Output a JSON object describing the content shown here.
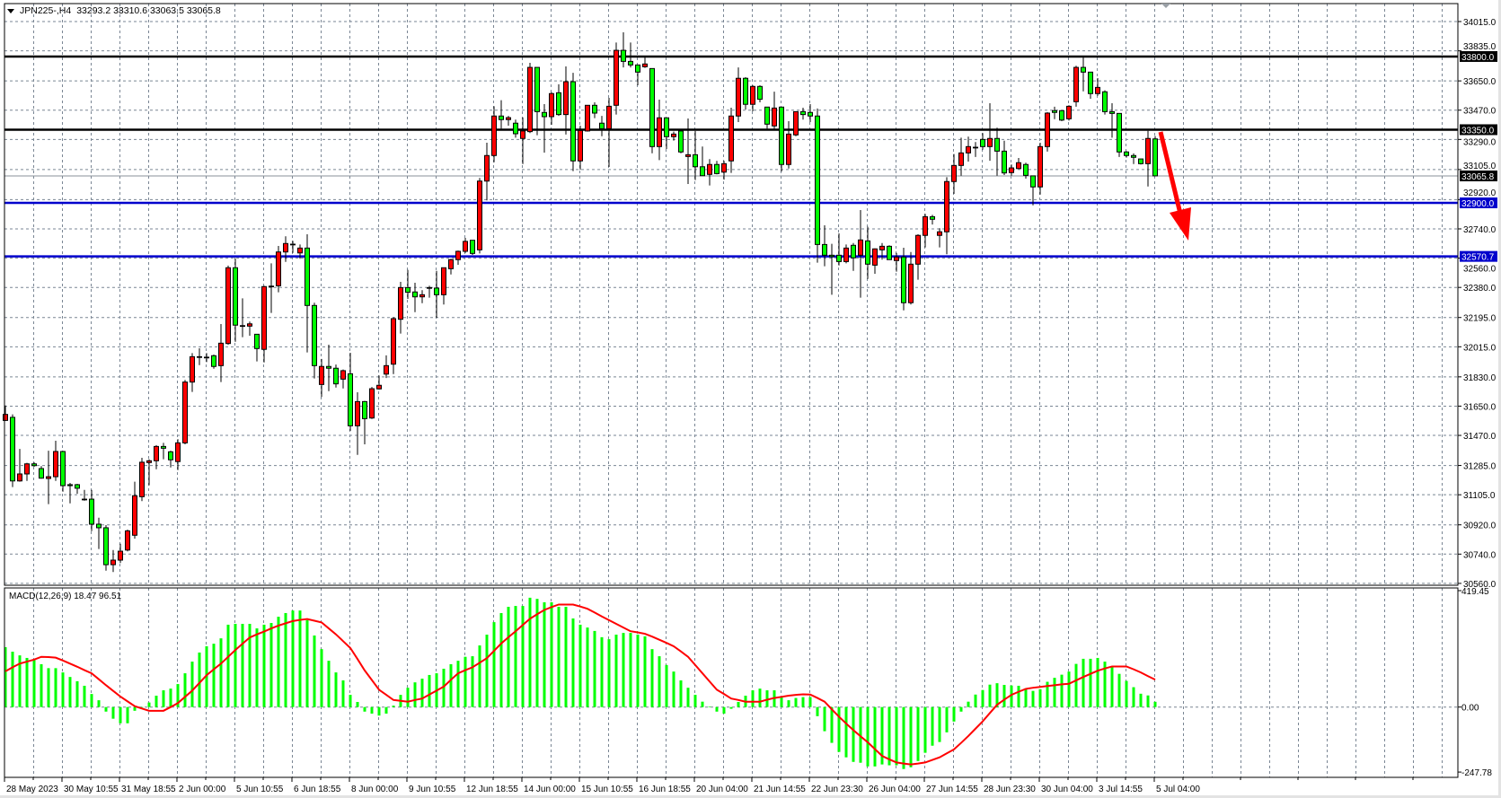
{
  "header": {
    "symbol": "JPN225-,H4",
    "ohlc_text": "33293.2 33310.6 33063.5 33065.8"
  },
  "colors": {
    "bull_candle": "#ff0000",
    "bear_candle": "#00ff00",
    "resistance_line": "#000000",
    "support_line": "#0000cc",
    "current_price_line": "#8a9099",
    "macd_histogram": "#00ff00",
    "macd_signal": "#ff0000",
    "arrow": "#ff0000",
    "grid": "#7a8694"
  },
  "chart_data": {
    "type": "candlestick",
    "timeframe": "H4",
    "price_axis": {
      "range": [
        30560.0,
        34015.0
      ],
      "ticks": [
        "34015.0",
        "33835.0",
        "33650.0",
        "33470.0",
        "33290.0",
        "33105.0",
        "32920.0",
        "32740.0",
        "32560.0",
        "32380.0",
        "32195.0",
        "32015.0",
        "31830.0",
        "31650.0",
        "31470.0",
        "31285.0",
        "31105.0",
        "30920.0",
        "30740.0",
        "30560.0"
      ]
    },
    "time_axis_labels": [
      "28 May 2023",
      "30 May 10:55",
      "31 May 18:55",
      "2 Jun 00:00",
      "5 Jun 10:55",
      "6 Jun 18:55",
      "8 Jun 00:00",
      "9 Jun 10:55",
      "12 Jun 18:55",
      "14 Jun 00:00",
      "15 Jun 10:55",
      "16 Jun 18:55",
      "20 Jun 04:00",
      "21 Jun 14:55",
      "22 Jun 23:30",
      "26 Jun 04:00",
      "27 Jun 14:55",
      "28 Jun 23:30",
      "30 Jun 04:00",
      "3 Jul 14:55",
      "5 Jul 04:00"
    ],
    "grid": true,
    "horizontal_lines": [
      {
        "price": 33800.0,
        "label": "33800.0",
        "style": "resistance"
      },
      {
        "price": 33350.0,
        "label": "33350.0",
        "style": "resistance"
      },
      {
        "price": 32900.0,
        "label": "32900.0",
        "style": "support"
      },
      {
        "price": 32570.7,
        "label": "32570.7",
        "style": "support"
      }
    ],
    "current_price": {
      "price": 33065.8,
      "label": "33065.8"
    },
    "annotation": {
      "type": "arrow",
      "direction": "down",
      "from_price": 33350.0,
      "to_price": 32740.0
    },
    "ohlc": [
      [
        31562,
        31654,
        31559,
        31599
      ],
      [
        31581,
        31599,
        31152,
        31190
      ],
      [
        31190,
        31387,
        31185,
        31233
      ],
      [
        31233,
        31301,
        31190,
        31295
      ],
      [
        31295,
        31305,
        31277,
        31284
      ],
      [
        31266,
        31281,
        31204,
        31207
      ],
      [
        31205,
        31376,
        31047,
        31216
      ],
      [
        31216,
        31437,
        31190,
        31371
      ],
      [
        31371,
        31375,
        31124,
        31161
      ],
      [
        31167,
        31178,
        31052,
        31161
      ],
      [
        31167,
        31172,
        31111,
        31145
      ],
      [
        31078,
        31135,
        31069,
        31076
      ],
      [
        31078,
        31135,
        30881,
        30924
      ],
      [
        30924,
        30964,
        30771,
        30902
      ],
      [
        30902,
        30918,
        30638,
        30675
      ],
      [
        30675,
        30765,
        30630,
        30703
      ],
      [
        30703,
        30804,
        30685,
        30758
      ],
      [
        30765,
        30891,
        30757,
        30883
      ],
      [
        30856,
        31185,
        30835,
        31099
      ],
      [
        31093,
        31332,
        31066,
        31305
      ],
      [
        31303,
        31323,
        31163,
        31314
      ],
      [
        31314,
        31410,
        31262,
        31402
      ],
      [
        31402,
        31424,
        31323,
        31391
      ],
      [
        31369,
        31376,
        31273,
        31320
      ],
      [
        31309,
        31447,
        31257,
        31424
      ],
      [
        31424,
        31811,
        31415,
        31798
      ],
      [
        31798,
        31976,
        31737,
        31954
      ],
      [
        31952,
        32006,
        31902,
        31954
      ],
      [
        31951,
        31976,
        31921,
        31951
      ],
      [
        31960,
        31967,
        31880,
        31894
      ],
      [
        31899,
        32155,
        31798,
        32037
      ],
      [
        32035,
        32514,
        32028,
        32501
      ],
      [
        32501,
        32556,
        32046,
        32148
      ],
      [
        32145,
        32313,
        32074,
        32145
      ],
      [
        32142,
        32170,
        32083,
        32156
      ],
      [
        32092,
        32094,
        31925,
        32004
      ],
      [
        31999,
        32390,
        31919,
        32385
      ],
      [
        32388,
        32528,
        32223,
        32388
      ],
      [
        32390,
        32635,
        32350,
        32598
      ],
      [
        32598,
        32694,
        32537,
        32650
      ],
      [
        32646,
        32666,
        32592,
        32646
      ],
      [
        32592,
        32644,
        32556,
        32622
      ],
      [
        32622,
        32707,
        31980,
        32269
      ],
      [
        32269,
        32286,
        31820,
        31899
      ],
      [
        31783,
        31940,
        31706,
        31894
      ],
      [
        31894,
        32028,
        31742,
        31883
      ],
      [
        31883,
        31906,
        31764,
        31787
      ],
      [
        31816,
        31875,
        31759,
        31868
      ],
      [
        31849,
        31978,
        31498,
        31529
      ],
      [
        31529,
        31735,
        31350,
        31678
      ],
      [
        31678,
        31682,
        31415,
        31573
      ],
      [
        31577,
        31768,
        31571,
        31757
      ],
      [
        31756,
        31838,
        31752,
        31778
      ],
      [
        31847,
        31962,
        31823,
        31899
      ],
      [
        31908,
        32197,
        31847,
        32188
      ],
      [
        32184,
        32414,
        32096,
        32379
      ],
      [
        32379,
        32488,
        32309,
        32350
      ],
      [
        32352,
        32409,
        32228,
        32322
      ],
      [
        32322,
        32363,
        32283,
        32335
      ],
      [
        32379,
        32390,
        32317,
        32379
      ],
      [
        32376,
        32482,
        32193,
        32335
      ],
      [
        32335,
        32501,
        32275,
        32501
      ],
      [
        32495,
        32556,
        32460,
        32551
      ],
      [
        32551,
        32607,
        32519,
        32602
      ],
      [
        32602,
        32685,
        32592,
        32663
      ],
      [
        32670,
        32670,
        32580,
        32589
      ],
      [
        32611,
        33053,
        32589,
        33034
      ],
      [
        33034,
        33270,
        32915,
        33191
      ],
      [
        33191,
        33494,
        33150,
        33434
      ],
      [
        33434,
        33531,
        33356,
        33412
      ],
      [
        33412,
        33435,
        33375,
        33424
      ],
      [
        33390,
        33412,
        33301,
        33325
      ],
      [
        33296,
        33426,
        33139,
        33342
      ],
      [
        33338,
        33761,
        33329,
        33733
      ],
      [
        33733,
        33733,
        33316,
        33461
      ],
      [
        33456,
        33507,
        33209,
        33430
      ],
      [
        33430,
        33581,
        33380,
        33572
      ],
      [
        33577,
        33629,
        33435,
        33443
      ],
      [
        33443,
        33739,
        33320,
        33645
      ],
      [
        33645,
        33700,
        33095,
        33158
      ],
      [
        33158,
        33375,
        33104,
        33345
      ],
      [
        33342,
        33500,
        33338,
        33500
      ],
      [
        33500,
        33518,
        33421,
        33452
      ],
      [
        33390,
        33435,
        33310,
        33356
      ],
      [
        33356,
        33546,
        33121,
        33494
      ],
      [
        33500,
        33886,
        33443,
        33838
      ],
      [
        33838,
        33949,
        33733,
        33770
      ],
      [
        33770,
        33886,
        33733,
        33748
      ],
      [
        33748,
        33748,
        33623,
        33704
      ],
      [
        33737,
        33794,
        33730,
        33754
      ],
      [
        33726,
        33726,
        33205,
        33246
      ],
      [
        33246,
        33535,
        33163,
        33423
      ],
      [
        33423,
        33423,
        33231,
        33307
      ],
      [
        33307,
        33338,
        33283,
        33323
      ],
      [
        33342,
        33342,
        33205,
        33213
      ],
      [
        33185,
        33419,
        33016,
        33196
      ],
      [
        33196,
        33342,
        33040,
        33122
      ],
      [
        33122,
        33246,
        33067,
        33067
      ],
      [
        33075,
        33169,
        33007,
        33136
      ],
      [
        33136,
        33158,
        33075,
        33080
      ],
      [
        33089,
        33159,
        33043,
        33141
      ],
      [
        33158,
        33485,
        33084,
        33434
      ],
      [
        33434,
        33733,
        33397,
        33666
      ],
      [
        33666,
        33673,
        33474,
        33506
      ],
      [
        33506,
        33623,
        33463,
        33616
      ],
      [
        33616,
        33623,
        33518,
        33537
      ],
      [
        33489,
        33489,
        33356,
        33384
      ],
      [
        33373,
        33584,
        33356,
        33483
      ],
      [
        33489,
        33489,
        33093,
        33136
      ],
      [
        33136,
        33402,
        33111,
        33323
      ],
      [
        33318,
        33461,
        33310,
        33461
      ],
      [
        33461,
        33485,
        33412,
        33443
      ],
      [
        33456,
        33507,
        33397,
        33434
      ],
      [
        33434,
        33480,
        32532,
        32644
      ],
      [
        32644,
        32762,
        32510,
        32578
      ],
      [
        32578,
        32648,
        32335,
        32570
      ],
      [
        32578,
        32712,
        32515,
        32539
      ],
      [
        32539,
        32644,
        32528,
        32622
      ],
      [
        32639,
        32653,
        32482,
        32562
      ],
      [
        32578,
        32856,
        32317,
        32672
      ],
      [
        32666,
        32753,
        32432,
        32523
      ],
      [
        32517,
        32620,
        32464,
        32617
      ],
      [
        32611,
        32653,
        32551,
        32633
      ],
      [
        32633,
        32639,
        32563,
        32551
      ],
      [
        32545,
        32592,
        32477,
        32567
      ],
      [
        32567,
        32624,
        32239,
        32286
      ],
      [
        32286,
        32598,
        32275,
        32523
      ],
      [
        32523,
        32707,
        32427,
        32700
      ],
      [
        32700,
        32832,
        32626,
        32815
      ],
      [
        32815,
        32826,
        32767,
        32799
      ],
      [
        32700,
        32744,
        32626,
        32722
      ],
      [
        32722,
        33058,
        32584,
        33031
      ],
      [
        33031,
        33200,
        32955,
        33130
      ],
      [
        33130,
        33301,
        33067,
        33207
      ],
      [
        33207,
        33307,
        33154,
        33246
      ],
      [
        33242,
        33274,
        33182,
        33242
      ],
      [
        33290,
        33329,
        33227,
        33246
      ],
      [
        33246,
        33513,
        33159,
        33296
      ],
      [
        33296,
        33362,
        33067,
        33218
      ],
      [
        33218,
        33282,
        33071,
        33084
      ],
      [
        33086,
        33136,
        33067,
        33115
      ],
      [
        33111,
        33176,
        33108,
        33147
      ],
      [
        33136,
        33147,
        33049,
        33069
      ],
      [
        33066,
        33066,
        32885,
        32998
      ],
      [
        32998,
        33270,
        32951,
        33246
      ],
      [
        33246,
        33458,
        33215,
        33452
      ],
      [
        33467,
        33491,
        33415,
        33456
      ],
      [
        33467,
        33467,
        33402,
        33409
      ],
      [
        33417,
        33500,
        33406,
        33494
      ],
      [
        33522,
        33743,
        33491,
        33733
      ],
      [
        33733,
        33798,
        33586,
        33704
      ],
      [
        33704,
        33704,
        33540,
        33572
      ],
      [
        33572,
        33667,
        33559,
        33610
      ],
      [
        33583,
        33592,
        33443,
        33461
      ],
      [
        33461,
        33513,
        33301,
        33450
      ],
      [
        33450,
        33450,
        33182,
        33213
      ],
      [
        33213,
        33218,
        33178,
        33191
      ],
      [
        33191,
        33204,
        33139,
        33180
      ],
      [
        33170,
        33170,
        33136,
        33141
      ],
      [
        33141,
        33343,
        33001,
        33296
      ],
      [
        33293.2,
        33310.6,
        33063.5,
        33065.8
      ]
    ],
    "macd": {
      "label": "MACD(12,26,9) 18.47 96.51",
      "params": "12,26,9",
      "axis_ticks": [
        "419.45",
        "0.00",
        "-247.78"
      ],
      "range": [
        -247.78,
        419.45
      ],
      "histogram": [
        211,
        195,
        182,
        173,
        166,
        151,
        137,
        137,
        122,
        106,
        91,
        75,
        46,
        24,
        -16,
        -41,
        -57,
        -57,
        -13,
        -2,
        16,
        40,
        59,
        65,
        81,
        119,
        160,
        192,
        214,
        223,
        242,
        290,
        293,
        293,
        293,
        277,
        290,
        296,
        318,
        331,
        340,
        340,
        306,
        252,
        204,
        163,
        122,
        94,
        43,
        18,
        -16,
        -23,
        -30,
        -23,
        5,
        43,
        68,
        87,
        100,
        113,
        119,
        135,
        151,
        163,
        177,
        179,
        217,
        255,
        299,
        331,
        353,
        356,
        356,
        385,
        381,
        369,
        369,
        353,
        353,
        312,
        290,
        280,
        268,
        246,
        239,
        255,
        261,
        261,
        255,
        249,
        204,
        179,
        148,
        125,
        94,
        68,
        43,
        19,
        2,
        -16,
        -23,
        -6,
        18,
        40,
        59,
        65,
        59,
        59,
        35,
        24,
        32,
        35,
        35,
        -32,
        -85,
        -126,
        -158,
        -177,
        -193,
        -196,
        -209,
        -209,
        -202,
        -205,
        -205,
        -218,
        -212,
        -190,
        -161,
        -136,
        -123,
        -89,
        -51,
        -16,
        19,
        44,
        60,
        79,
        84,
        78,
        76,
        75,
        66,
        57,
        63,
        89,
        103,
        114,
        125,
        152,
        170,
        170,
        173,
        160,
        142,
        117,
        92,
        70,
        47,
        41,
        18.47
      ],
      "signal": [
        126,
        140,
        153,
        160,
        167,
        177,
        176,
        174,
        164,
        153,
        142,
        130,
        119,
        98,
        77,
        57,
        37,
        20,
        3,
        -5,
        -13,
        -13,
        -13,
        0,
        14,
        36,
        58,
        85,
        112,
        133,
        153,
        177,
        201,
        223,
        245,
        256,
        266,
        277,
        287,
        295,
        303,
        307,
        310,
        304,
        298,
        277,
        256,
        232,
        208,
        169,
        129,
        95,
        61,
        43,
        25,
        22,
        19,
        25,
        30,
        44,
        58,
        72,
        96,
        119,
        130,
        140,
        156,
        172,
        198,
        224,
        246,
        267,
        289,
        311,
        327,
        342,
        352,
        361,
        361,
        361,
        354,
        346,
        333,
        319,
        306,
        293,
        280,
        267,
        263,
        258,
        248,
        237,
        226,
        214,
        196,
        177,
        148,
        119,
        90,
        61,
        46,
        30,
        25,
        19,
        19,
        19,
        26,
        32,
        36,
        40,
        43,
        45,
        44,
        32,
        19,
        -8,
        -34,
        -58,
        -81,
        -103,
        -124,
        -148,
        -172,
        -184,
        -195,
        -199,
        -202,
        -199,
        -195,
        -186,
        -177,
        -163,
        -149,
        -126,
        -102,
        -76,
        -50,
        -21,
        8,
        26,
        43,
        54,
        64,
        68,
        71,
        74,
        77,
        80,
        82,
        94,
        106,
        117,
        128,
        136,
        143,
        143,
        143,
        133,
        122,
        109,
        96.51
      ]
    }
  }
}
